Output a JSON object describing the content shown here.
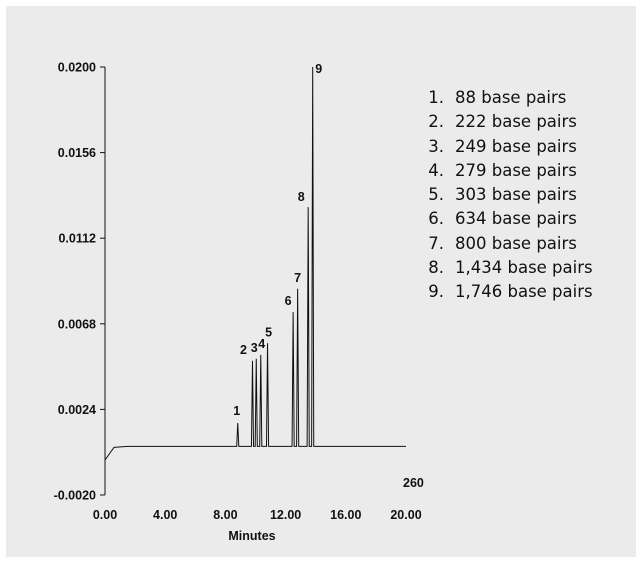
{
  "chart_data": {
    "type": "line",
    "xlabel": "Minutes",
    "ylabel": "",
    "xlim": [
      0,
      20
    ],
    "ylim": [
      -0.002,
      0.02
    ],
    "x_ticks": [
      "0.00",
      "4.00",
      "8.00",
      "12.00",
      "16.00",
      "20.00"
    ],
    "y_ticks": [
      "-0.0020",
      "0.0024",
      "0.0068",
      "0.0112",
      "0.0156",
      "0.0200"
    ],
    "corner_label": "260",
    "baseline": {
      "start": -0.0002,
      "level": 0.0005
    },
    "peaks": [
      {
        "label": "1",
        "time": 8.82,
        "height": 0.0017
      },
      {
        "label": "2",
        "time": 9.8,
        "height": 0.0049
      },
      {
        "label": "3",
        "time": 10.05,
        "height": 0.005
      },
      {
        "label": "4",
        "time": 10.35,
        "height": 0.0052
      },
      {
        "label": "5",
        "time": 10.8,
        "height": 0.0058
      },
      {
        "label": "6",
        "time": 12.5,
        "height": 0.0074
      },
      {
        "label": "7",
        "time": 12.8,
        "height": 0.0086
      },
      {
        "label": "8",
        "time": 13.5,
        "height": 0.0128
      },
      {
        "label": "9",
        "time": 13.8,
        "height": 0.02
      }
    ],
    "legend": [
      {
        "num": "1.",
        "text": "88 base pairs"
      },
      {
        "num": "2.",
        "text": "222 base pairs"
      },
      {
        "num": "3.",
        "text": "249 base pairs"
      },
      {
        "num": "4.",
        "text": "279 base pairs"
      },
      {
        "num": "5.",
        "text": "303 base pairs"
      },
      {
        "num": "6.",
        "text": "634 base pairs"
      },
      {
        "num": "7.",
        "text": "800 base pairs"
      },
      {
        "num": "8.",
        "text": "1,434 base pairs"
      },
      {
        "num": "9.",
        "text": "1,746 base pairs"
      }
    ]
  }
}
